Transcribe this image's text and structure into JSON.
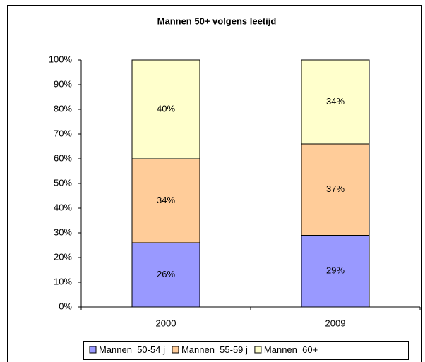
{
  "chart_data": {
    "type": "stacked_bar",
    "title": "Mannen 50+ volgens leetijd",
    "categories": [
      "2000",
      "2009"
    ],
    "series": [
      {
        "name": "Mannen  50-54 j",
        "color": "#9999ff",
        "values": [
          26,
          29
        ],
        "value_labels": [
          "26%",
          "29%"
        ]
      },
      {
        "name": "Mannen  55-59 j",
        "color": "#ffcc99",
        "values": [
          34,
          37
        ],
        "value_labels": [
          "34%",
          "37%"
        ]
      },
      {
        "name": "Mannen  60+",
        "color": "#ffffcc",
        "values": [
          40,
          34
        ],
        "value_labels": [
          "40%",
          "34%"
        ]
      }
    ],
    "ylim": [
      0,
      100
    ],
    "yticks": [
      {
        "value": 0,
        "label": "0%"
      },
      {
        "value": 10,
        "label": "10%"
      },
      {
        "value": 20,
        "label": "20%"
      },
      {
        "value": 30,
        "label": "30%"
      },
      {
        "value": 40,
        "label": "40%"
      },
      {
        "value": 50,
        "label": "50%"
      },
      {
        "value": 60,
        "label": "60%"
      },
      {
        "value": 70,
        "label": "70%"
      },
      {
        "value": 80,
        "label": "80%"
      },
      {
        "value": 90,
        "label": "90%"
      },
      {
        "value": 100,
        "label": "100%"
      }
    ],
    "grid": false,
    "legend": "bottom"
  }
}
